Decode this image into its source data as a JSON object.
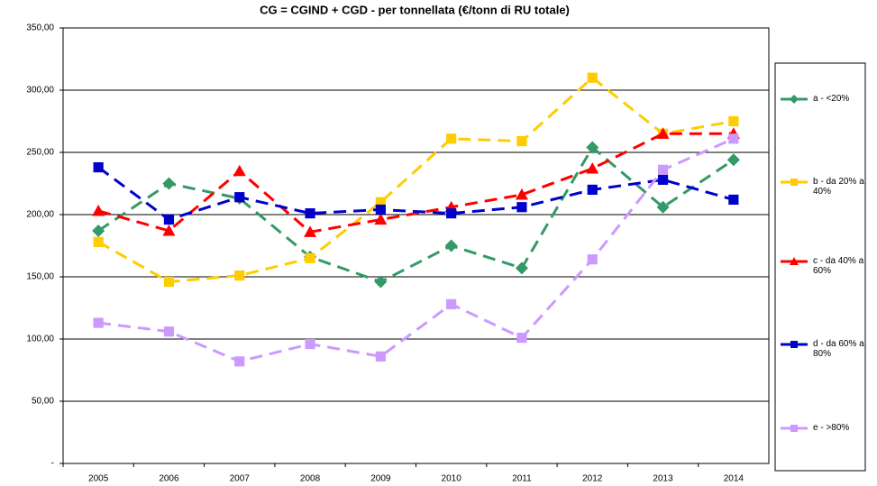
{
  "chart_data": {
    "type": "line",
    "title": "CG = CGIND + CGD  - per tonnellata (€/tonn di RU totale)",
    "categories": [
      "2005",
      "2006",
      "2007",
      "2008",
      "2009",
      "2010",
      "2011",
      "2012",
      "2013",
      "2014"
    ],
    "series": [
      {
        "name": "a - <20%",
        "color": "#339966",
        "marker": "diamond",
        "values": [
          187,
          225,
          213,
          166,
          146,
          175,
          157,
          254,
          206,
          244
        ]
      },
      {
        "name": "b - da 20% a 40%",
        "color": "#ffcc00",
        "marker": "square",
        "values": [
          178,
          146,
          151,
          165,
          210,
          261,
          259,
          310,
          265,
          275
        ]
      },
      {
        "name": "c - da 40% a 60%",
        "color": "#ff0000",
        "marker": "triangle",
        "values": [
          203,
          187,
          235,
          186,
          196,
          206,
          216,
          237,
          265,
          265
        ]
      },
      {
        "name": "d - da 60% a 80%",
        "color": "#0000cc",
        "marker": "square",
        "values": [
          238,
          196,
          214,
          201,
          204,
          201,
          206,
          220,
          228,
          212
        ]
      },
      {
        "name": "e - >80%",
        "color": "#cc99ff",
        "marker": "square",
        "values": [
          113,
          106,
          82,
          96,
          86,
          128,
          101,
          164,
          236,
          261
        ]
      }
    ],
    "ylim": [
      0,
      350
    ],
    "yticks": [
      {
        "value": 0,
        "label": "-"
      },
      {
        "value": 50,
        "label": "50,00"
      },
      {
        "value": 100,
        "label": "100,00"
      },
      {
        "value": 150,
        "label": "150,00"
      },
      {
        "value": 200,
        "label": "200,00"
      },
      {
        "value": 250,
        "label": "250,00"
      },
      {
        "value": 300,
        "label": "300,00"
      },
      {
        "value": 350,
        "label": "350,00"
      }
    ],
    "grid": true,
    "legend": "right"
  }
}
